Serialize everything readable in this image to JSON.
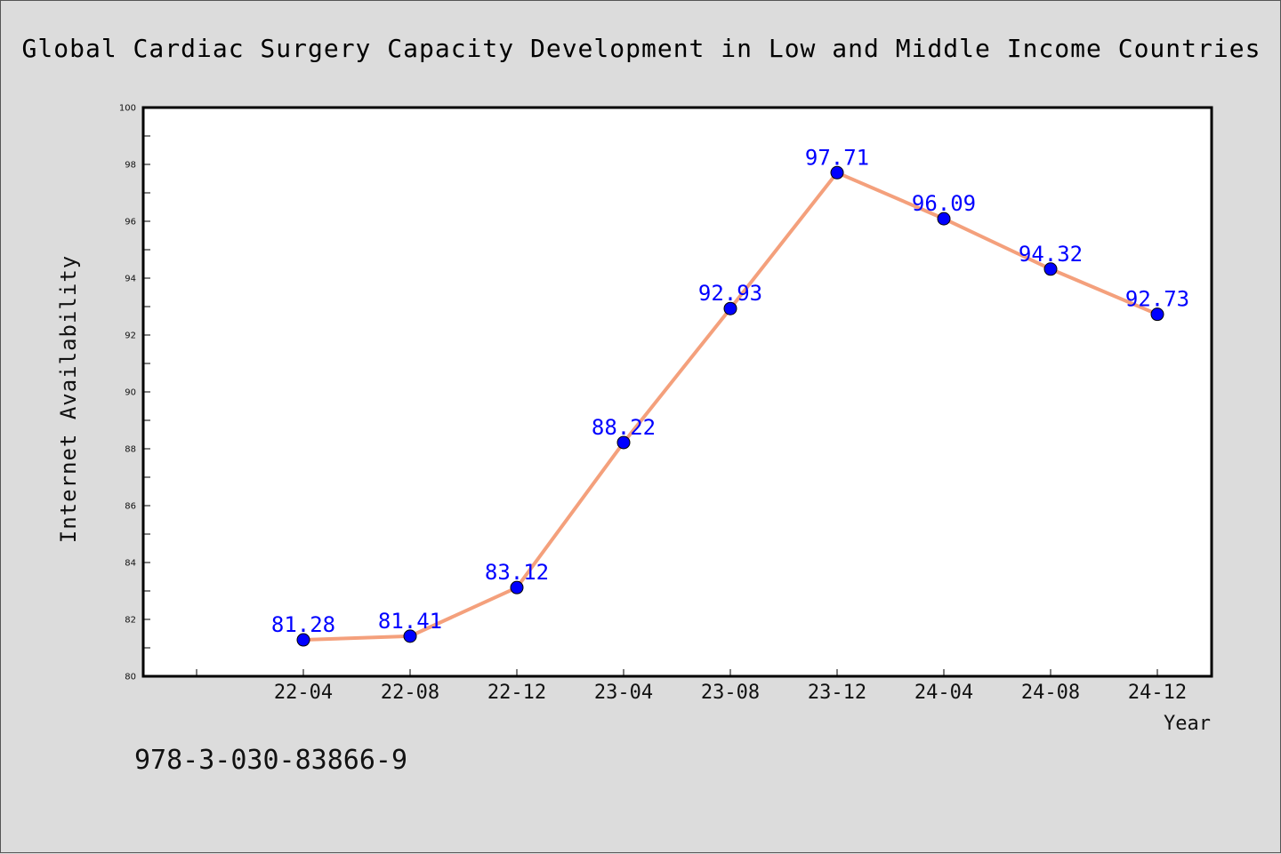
{
  "chart_data": {
    "type": "line",
    "title": "Global Cardiac Surgery Capacity Development in Low and Middle Income Countries",
    "xlabel": "Year",
    "ylabel": "Internet Availability",
    "categories": [
      "22-04",
      "22-08",
      "22-12",
      "23-04",
      "23-08",
      "23-12",
      "24-04",
      "24-08",
      "24-12"
    ],
    "values": [
      81.28,
      81.41,
      83.12,
      88.22,
      92.93,
      97.71,
      96.09,
      94.32,
      92.73
    ],
    "ylim": [
      80,
      100
    ],
    "yticks": [
      "80",
      "82",
      "84",
      "86",
      "88",
      "90",
      "92",
      "94",
      "96",
      "98",
      "100"
    ],
    "grid": false,
    "line_color": "#f4a07c",
    "marker_color": "#0000ff",
    "label_color": "#0000ff"
  },
  "footer": {
    "code": "978-3-030-83866-9"
  }
}
